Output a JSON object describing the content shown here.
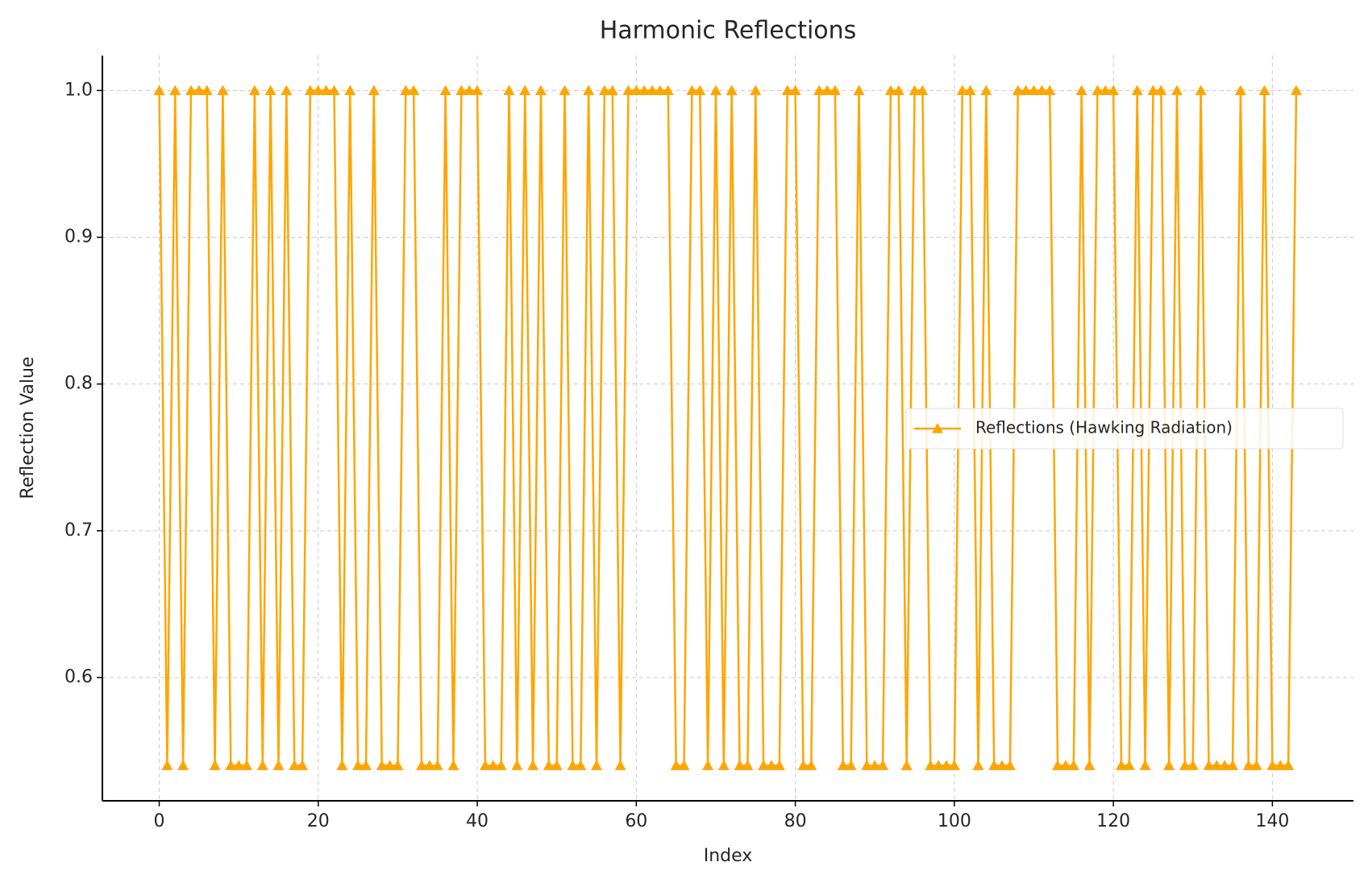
{
  "chart_data": {
    "type": "line",
    "title": "Harmonic Reflections",
    "xlabel": "Index",
    "ylabel": "Reflection Value",
    "x": [
      0,
      1,
      2,
      3,
      4,
      5,
      6,
      7,
      8,
      9,
      10,
      11,
      12,
      13,
      14,
      15,
      16,
      17,
      18,
      19,
      20,
      21,
      22,
      23,
      24,
      25,
      26,
      27,
      28,
      29,
      30,
      31,
      32,
      33,
      34,
      35,
      36,
      37,
      38,
      39,
      40,
      41,
      42,
      43,
      44,
      45,
      46,
      47,
      48,
      49,
      50,
      51,
      52,
      53,
      54,
      55,
      56,
      57,
      58,
      59,
      60,
      61,
      62,
      63,
      64,
      65,
      66,
      67,
      68,
      69,
      70,
      71,
      72,
      73,
      74,
      75,
      76,
      77,
      78,
      79,
      80,
      81,
      82,
      83,
      84,
      85,
      86,
      87,
      88,
      89,
      90,
      91,
      92,
      93,
      94,
      95,
      96,
      97,
      98,
      99,
      100,
      101,
      102,
      103,
      104,
      105,
      106,
      107,
      108,
      109,
      110,
      111,
      112,
      113,
      114,
      115,
      116,
      117,
      118,
      119,
      120,
      121,
      122,
      123,
      124,
      125,
      126,
      127,
      128,
      129,
      130,
      131,
      132,
      133,
      134,
      135,
      136,
      137,
      138,
      139,
      140,
      141,
      142,
      143
    ],
    "series": [
      {
        "name": "Reflections (Hawking Radiation)",
        "color": "#ffa500",
        "marker": "triangle",
        "values": [
          1,
          0.54,
          1,
          0.54,
          1,
          1,
          1,
          0.54,
          1,
          0.54,
          0.54,
          0.54,
          1,
          0.54,
          1,
          0.54,
          1,
          0.54,
          0.54,
          1,
          1,
          1,
          1,
          0.54,
          1,
          0.54,
          0.54,
          1,
          0.54,
          0.54,
          0.54,
          1,
          1,
          0.54,
          0.54,
          0.54,
          1,
          0.54,
          1,
          1,
          1,
          0.54,
          0.54,
          0.54,
          1,
          0.54,
          1,
          0.54,
          1,
          0.54,
          0.54,
          1,
          0.54,
          0.54,
          1,
          0.54,
          1,
          1,
          0.54,
          1,
          1,
          1,
          1,
          1,
          1,
          0.54,
          0.54,
          1,
          1,
          0.54,
          1,
          0.54,
          1,
          0.54,
          0.54,
          1,
          0.54,
          0.54,
          0.54,
          1,
          1,
          0.54,
          0.54,
          1,
          1,
          1,
          0.54,
          0.54,
          1,
          0.54,
          0.54,
          0.54,
          1,
          1,
          0.54,
          1,
          1,
          0.54,
          0.54,
          0.54,
          0.54,
          1,
          1,
          0.54,
          1,
          0.54,
          0.54,
          0.54,
          1,
          1,
          1,
          1,
          1,
          0.54,
          0.54,
          0.54,
          1,
          0.54,
          1,
          1,
          1,
          0.54,
          0.54,
          1,
          0.54,
          1,
          1,
          0.54,
          1,
          0.54,
          0.54,
          1,
          0.54,
          0.54,
          0.54,
          0.54,
          1,
          0.54,
          0.54,
          1,
          0.54,
          0.54,
          0.54,
          1
        ]
      }
    ],
    "xlim": [
      -7.15,
      150.2
    ],
    "ylim": [
      0.516,
      1.0238
    ],
    "xticks": [
      0,
      20,
      40,
      60,
      80,
      100,
      120,
      140
    ],
    "yticks": [
      0.6,
      0.7,
      0.8,
      0.9,
      {
        "value": 1,
        "label": "1.0"
      }
    ],
    "grid": true,
    "legend": "right"
  }
}
